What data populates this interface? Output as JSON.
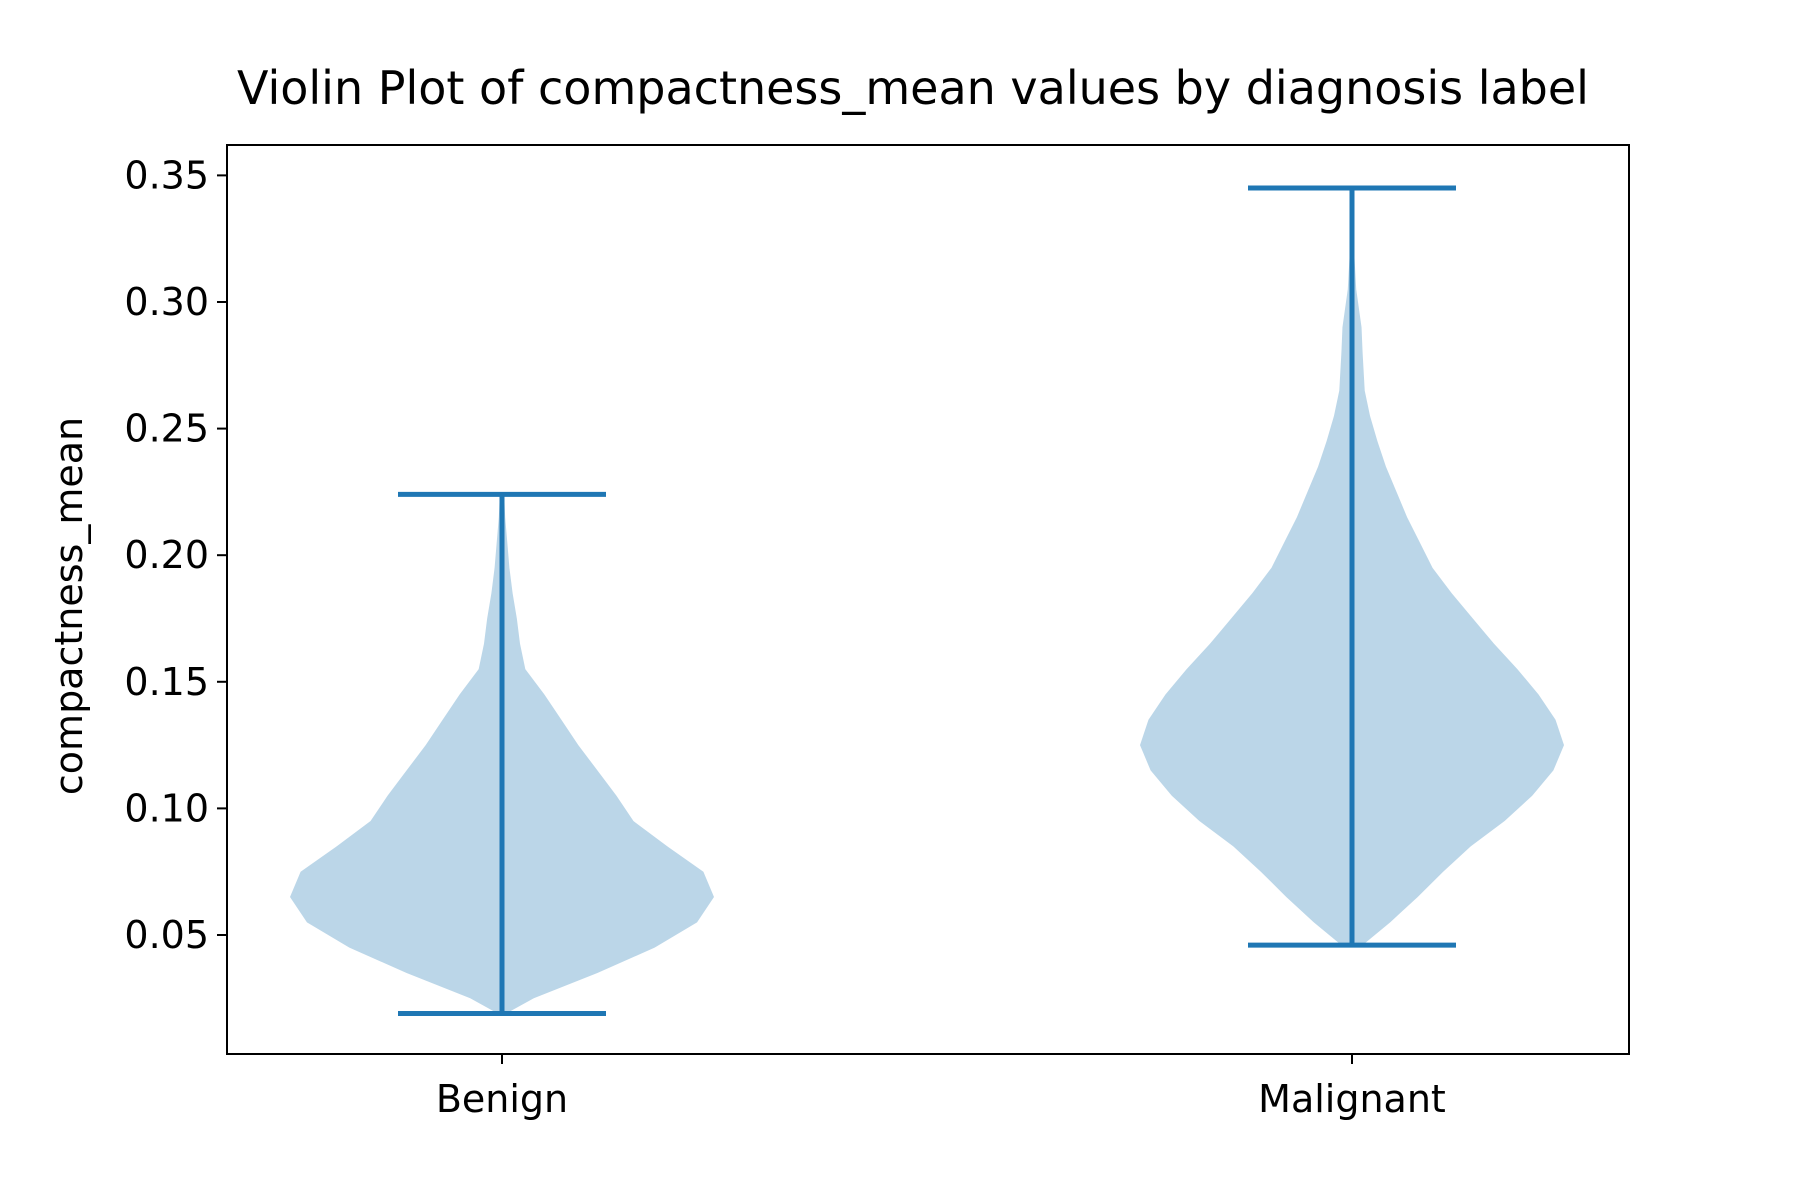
{
  "chart_data": {
    "type": "violin",
    "title": "Violin Plot of compactness_mean values by diagnosis label",
    "xlabel": "",
    "ylabel": "compactness_mean",
    "categories": [
      "Benign",
      "Malignant"
    ],
    "ylim": [
      0.003,
      0.362
    ],
    "yticks": [
      0.05,
      0.1,
      0.15,
      0.2,
      0.25,
      0.3,
      0.35
    ],
    "ytick_labels": [
      "0.05",
      "0.10",
      "0.15",
      "0.20",
      "0.25",
      "0.30",
      "0.35"
    ],
    "grid": false,
    "colors": {
      "line": "#1f77b4",
      "body": "#1f77b4",
      "body_opacity": 0.3
    },
    "violins": [
      {
        "category": "Benign",
        "min": 0.019,
        "max": 0.224,
        "density_profile": [
          [
            0.019,
            0.02
          ],
          [
            0.025,
            0.15
          ],
          [
            0.035,
            0.45
          ],
          [
            0.045,
            0.72
          ],
          [
            0.055,
            0.92
          ],
          [
            0.065,
            1.0
          ],
          [
            0.075,
            0.95
          ],
          [
            0.085,
            0.78
          ],
          [
            0.095,
            0.62
          ],
          [
            0.105,
            0.54
          ],
          [
            0.115,
            0.45
          ],
          [
            0.125,
            0.36
          ],
          [
            0.135,
            0.28
          ],
          [
            0.145,
            0.2
          ],
          [
            0.155,
            0.11
          ],
          [
            0.165,
            0.085
          ],
          [
            0.175,
            0.07
          ],
          [
            0.185,
            0.05
          ],
          [
            0.195,
            0.035
          ],
          [
            0.205,
            0.025
          ],
          [
            0.215,
            0.015
          ],
          [
            0.224,
            0.01
          ]
        ]
      },
      {
        "category": "Malignant",
        "min": 0.046,
        "max": 0.345,
        "density_profile": [
          [
            0.046,
            0.05
          ],
          [
            0.055,
            0.18
          ],
          [
            0.065,
            0.31
          ],
          [
            0.075,
            0.43
          ],
          [
            0.085,
            0.56
          ],
          [
            0.095,
            0.72
          ],
          [
            0.105,
            0.85
          ],
          [
            0.115,
            0.95
          ],
          [
            0.125,
            1.0
          ],
          [
            0.135,
            0.96
          ],
          [
            0.145,
            0.88
          ],
          [
            0.155,
            0.78
          ],
          [
            0.165,
            0.67
          ],
          [
            0.175,
            0.57
          ],
          [
            0.185,
            0.47
          ],
          [
            0.195,
            0.38
          ],
          [
            0.205,
            0.32
          ],
          [
            0.215,
            0.26
          ],
          [
            0.225,
            0.21
          ],
          [
            0.235,
            0.16
          ],
          [
            0.245,
            0.12
          ],
          [
            0.255,
            0.085
          ],
          [
            0.265,
            0.06
          ],
          [
            0.28,
            0.05
          ],
          [
            0.29,
            0.045
          ],
          [
            0.305,
            0.02
          ],
          [
            0.32,
            0.01
          ],
          [
            0.345,
            0.005
          ]
        ]
      }
    ]
  }
}
